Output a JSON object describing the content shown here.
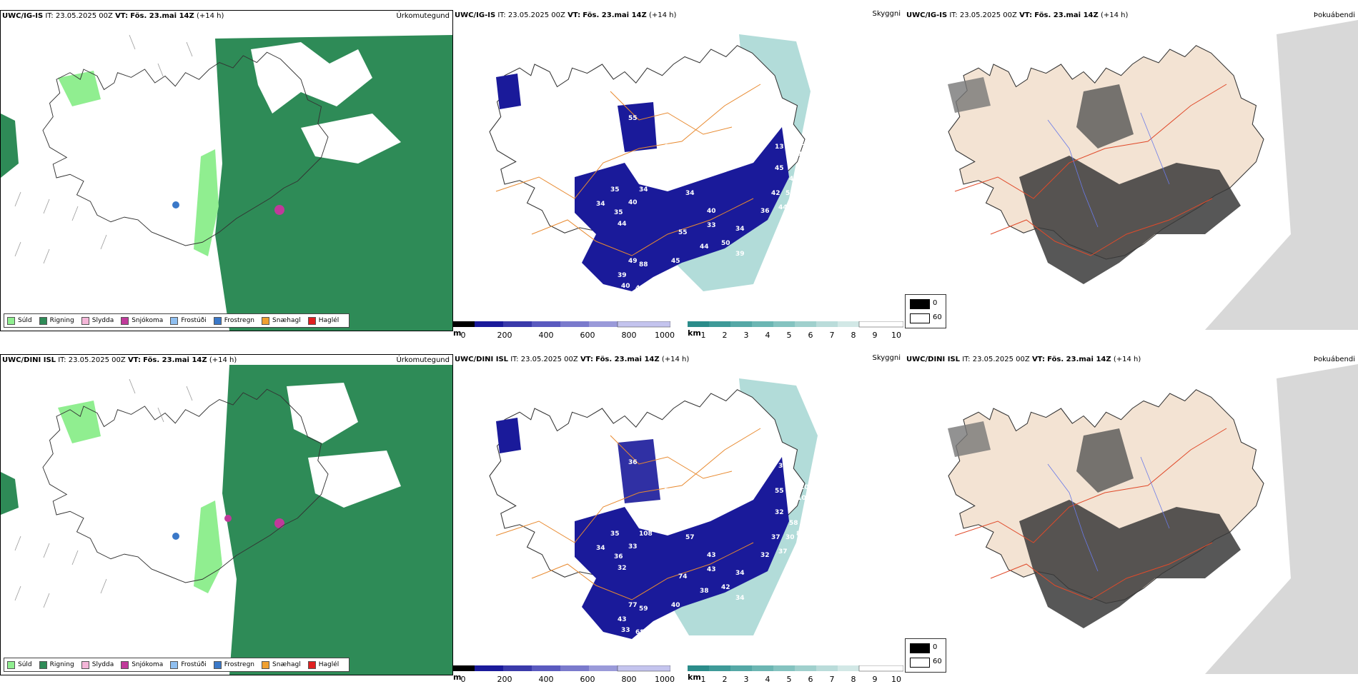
{
  "rows": [
    {
      "model": "UWC/IG-IS",
      "it_label": "IT:",
      "it_value": "23.05.2025 00Z",
      "vt_label": "VT:",
      "vt_value": "Fös. 23.mai 14Z",
      "lead": "(+14 h)",
      "precip_title": "Úrkomutegund",
      "vis_title": "Skyggni",
      "fog_title": "Þokuábendi",
      "labels": [
        "35",
        "34",
        "40",
        "35",
        "44",
        "34",
        "39",
        "49",
        "88",
        "40",
        "46",
        "55",
        "40",
        "33",
        "44",
        "50",
        "45",
        "39",
        "34",
        "36",
        "42",
        "44",
        "60",
        "55",
        "45",
        "47",
        "52",
        "58",
        "39",
        "25",
        "13",
        "55",
        "34"
      ]
    },
    {
      "model": "UWC/DINI ISL",
      "it_label": "IT:",
      "it_value": "23.05.2025 00Z",
      "vt_label": "VT:",
      "vt_value": "Fös. 23.mai 14Z",
      "lead": "(+14 h)",
      "precip_title": "Úrkomutegund",
      "vis_title": "Skyggni",
      "fog_title": "Þokuábendi",
      "labels": [
        "35",
        "34",
        "33",
        "36",
        "32",
        "108",
        "43",
        "77",
        "59",
        "33",
        "68",
        "74",
        "43",
        "43",
        "38",
        "42",
        "40",
        "34",
        "34",
        "32",
        "37",
        "37",
        "50",
        "36",
        "32",
        "58",
        "30",
        "82",
        "110",
        "100",
        "55",
        "35",
        "57"
      ]
    }
  ],
  "precip_legend": [
    {
      "name": "Súld",
      "color": "#90ee90"
    },
    {
      "name": "Rigning",
      "color": "#2e8b57"
    },
    {
      "name": "Slydda",
      "color": "#f4b6d8"
    },
    {
      "name": "Snjókoma",
      "color": "#c03a9a"
    },
    {
      "name": "Frostúði",
      "color": "#8fbff0"
    },
    {
      "name": "Frostregn",
      "color": "#3a78c8"
    },
    {
      "name": "Snæhagl",
      "color": "#f0a030"
    },
    {
      "name": "Haglél",
      "color": "#e02020"
    }
  ],
  "cbar_m": {
    "unit": "m",
    "ticks": [
      "0",
      "200",
      "400",
      "600",
      "800",
      "1000"
    ]
  },
  "cbar_km": {
    "unit": "km",
    "ticks": [
      "1",
      "2",
      "3",
      "4",
      "5",
      "6",
      "7",
      "8",
      "9",
      "10"
    ]
  },
  "fog_legend": {
    "dark": "0",
    "light": "60"
  }
}
